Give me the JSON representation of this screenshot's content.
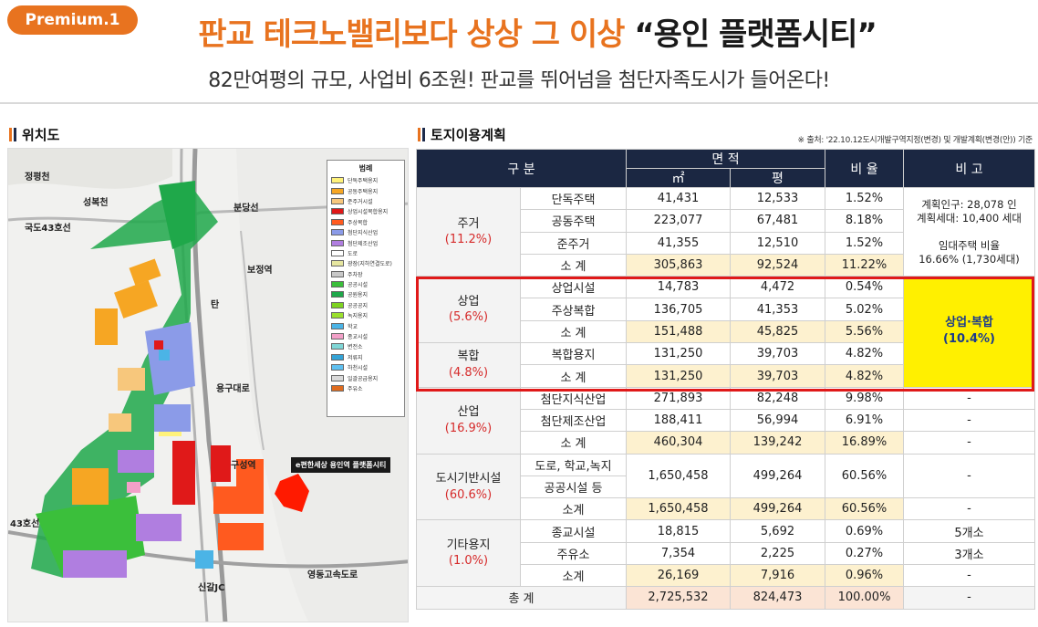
{
  "header": {
    "badge": "Premium.1",
    "headline_orange": "판교 테크노밸리보다 상상 그 이상",
    "headline_dark": "“용인 플랫폼시티”",
    "subheadline": "82만여평의 규모, 사업비 6조원! 판교를 뛰어넘을 첨단자족도시가 들어온다!"
  },
  "colors": {
    "accent": "#e8731f",
    "navy": "#1b2742",
    "highlight": "#fff000",
    "red": "#e01919"
  },
  "map_section": {
    "title": "위치도",
    "place_labels": [
      "정평천",
      "성복천",
      "국도43호선",
      "분당선",
      "보정역",
      "탄",
      "용구대로",
      "구성역",
      "신갈JC",
      "영동고속도로",
      "43호선"
    ],
    "callout": "e편한세상 용인역 플랫폼시티",
    "legend_title": "범례",
    "legend": [
      {
        "label": "단독주택용지",
        "color": "#fff27a"
      },
      {
        "label": "공동주택용지",
        "color": "#f6a623"
      },
      {
        "label": "준주거시설",
        "color": "#f7c77c"
      },
      {
        "label": "상업시설복합용지",
        "color": "#e01919"
      },
      {
        "label": "주상복합",
        "color": "#ff5a1f"
      },
      {
        "label": "첨단지식산업",
        "color": "#8b9be8"
      },
      {
        "label": "첨단제조산업",
        "color": "#b07ee0"
      },
      {
        "label": "도로",
        "color": "#ffffff"
      },
      {
        "label": "광장(지하연결도로)",
        "color": "#e6e6a0"
      },
      {
        "label": "주차장",
        "color": "#c8c8c8"
      },
      {
        "label": "공공시설",
        "color": "#3bbf3b"
      },
      {
        "label": "공원용지",
        "color": "#1fa84a"
      },
      {
        "label": "공공공지",
        "color": "#7ed321"
      },
      {
        "label": "녹지용지",
        "color": "#9be02d"
      },
      {
        "label": "학교",
        "color": "#4bb4e6"
      },
      {
        "label": "종교시설",
        "color": "#f2a0c8"
      },
      {
        "label": "변전소",
        "color": "#7fd6d6"
      },
      {
        "label": "저류지",
        "color": "#34a3d6"
      },
      {
        "label": "하천시설",
        "color": "#5fc0f0"
      },
      {
        "label": "일괄공급용지",
        "color": "#d9d9d9"
      },
      {
        "label": "주유소",
        "color": "#e06c1f"
      }
    ]
  },
  "table_section": {
    "title": "토지이용계획",
    "source": "※ 출처: '22.10.12도시개발구역지정(변경) 및 개발계획(변경(안)) 기준",
    "headers": {
      "category": "구 분",
      "area": "면 적",
      "sqm": "㎡",
      "pyeong": "평",
      "ratio": "비 율",
      "note": "비 고"
    },
    "subtotal_label": "소 계",
    "subtotal_label_alt": "소계",
    "groups": {
      "residential": {
        "name": "주거",
        "pct": "(11.2%)",
        "rows": [
          {
            "label": "단독주택",
            "sqm": "41,431",
            "py": "12,533",
            "ratio": "1.52%"
          },
          {
            "label": "공동주택",
            "sqm": "223,077",
            "py": "67,481",
            "ratio": "8.18%"
          },
          {
            "label": "준주거",
            "sqm": "41,355",
            "py": "12,510",
            "ratio": "1.52%"
          }
        ],
        "subtotal": {
          "sqm": "305,863",
          "py": "92,524",
          "ratio": "11.22%"
        },
        "note1": "계획인구: 28,078 인",
        "note2": "계획세대: 10,400 세대",
        "note3": "임대주택 비율",
        "note4": "16.66% (1,730세대)"
      },
      "commercial": {
        "name": "상업",
        "pct": "(5.6%)",
        "rows": [
          {
            "label": "상업시설",
            "sqm": "14,783",
            "py": "4,472",
            "ratio": "0.54%"
          },
          {
            "label": "주상복합",
            "sqm": "136,705",
            "py": "41,353",
            "ratio": "5.02%"
          }
        ],
        "subtotal": {
          "sqm": "151,488",
          "py": "45,825",
          "ratio": "5.56%"
        }
      },
      "mixed": {
        "name": "복합",
        "pct": "(4.8%)",
        "rows": [
          {
            "label": "복합용지",
            "sqm": "131,250",
            "py": "39,703",
            "ratio": "4.82%"
          }
        ],
        "subtotal": {
          "sqm": "131,250",
          "py": "39,703",
          "ratio": "4.82%"
        }
      },
      "commercial_note_title": "상업·복합",
      "commercial_note_pct": "(10.4%)",
      "industrial": {
        "name": "산업",
        "pct": "(16.9%)",
        "rows": [
          {
            "label": "첨단지식산업",
            "sqm": "271,893",
            "py": "82,248",
            "ratio": "9.98%",
            "note": "-"
          },
          {
            "label": "첨단제조산업",
            "sqm": "188,411",
            "py": "56,994",
            "ratio": "6.91%",
            "note": "-"
          }
        ],
        "subtotal": {
          "sqm": "460,304",
          "py": "139,242",
          "ratio": "16.89%",
          "note": "-"
        }
      },
      "infra": {
        "name": "도시기반시설",
        "pct": "(60.6%)",
        "sub1": "도로, 학교,녹지",
        "sub2": "공공시설 등",
        "sqm": "1,650,458",
        "py": "499,264",
        "ratio": "60.56%",
        "note": "-",
        "subtotal": {
          "sqm": "1,650,458",
          "py": "499,264",
          "ratio": "60.56%",
          "note": "-"
        }
      },
      "other": {
        "name": "기타용지",
        "pct": "(1.0%)",
        "rows": [
          {
            "label": "종교시설",
            "sqm": "18,815",
            "py": "5,692",
            "ratio": "0.69%",
            "note": "5개소"
          },
          {
            "label": "주유소",
            "sqm": "7,354",
            "py": "2,225",
            "ratio": "0.27%",
            "note": "3개소"
          }
        ],
        "subtotal": {
          "sqm": "26,169",
          "py": "7,916",
          "ratio": "0.96%",
          "note": "-"
        }
      }
    },
    "total": {
      "label": "총 계",
      "sqm": "2,725,532",
      "py": "824,473",
      "ratio": "100.00%",
      "note": "-"
    }
  }
}
